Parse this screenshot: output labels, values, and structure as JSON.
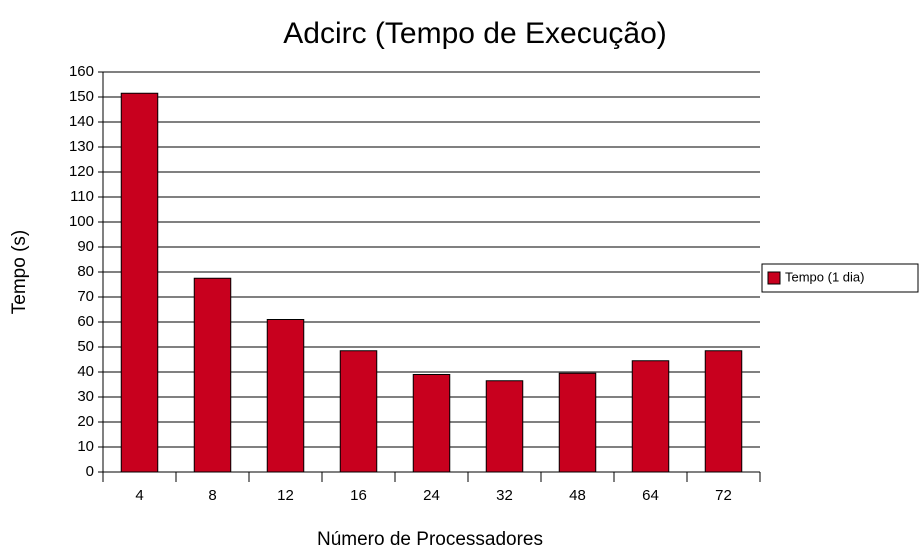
{
  "chart_data": {
    "type": "bar",
    "title": "Adcirc (Tempo de Execução)",
    "x_label": "Número de Processadores",
    "y_label": "Tempo (s)",
    "categories": [
      "4",
      "8",
      "12",
      "16",
      "24",
      "32",
      "48",
      "64",
      "72"
    ],
    "series": [
      {
        "name": "Tempo (1 dia)",
        "color": "#c8001e",
        "values": [
          151.5,
          77.5,
          61,
          48.5,
          39,
          36.5,
          39.5,
          44.5,
          48.5
        ]
      }
    ],
    "ylim": [
      0,
      160
    ],
    "yticks": [
      0,
      10,
      20,
      30,
      40,
      50,
      60,
      70,
      80,
      90,
      100,
      110,
      120,
      130,
      140,
      150,
      160
    ],
    "grid": true,
    "legend": "right"
  }
}
